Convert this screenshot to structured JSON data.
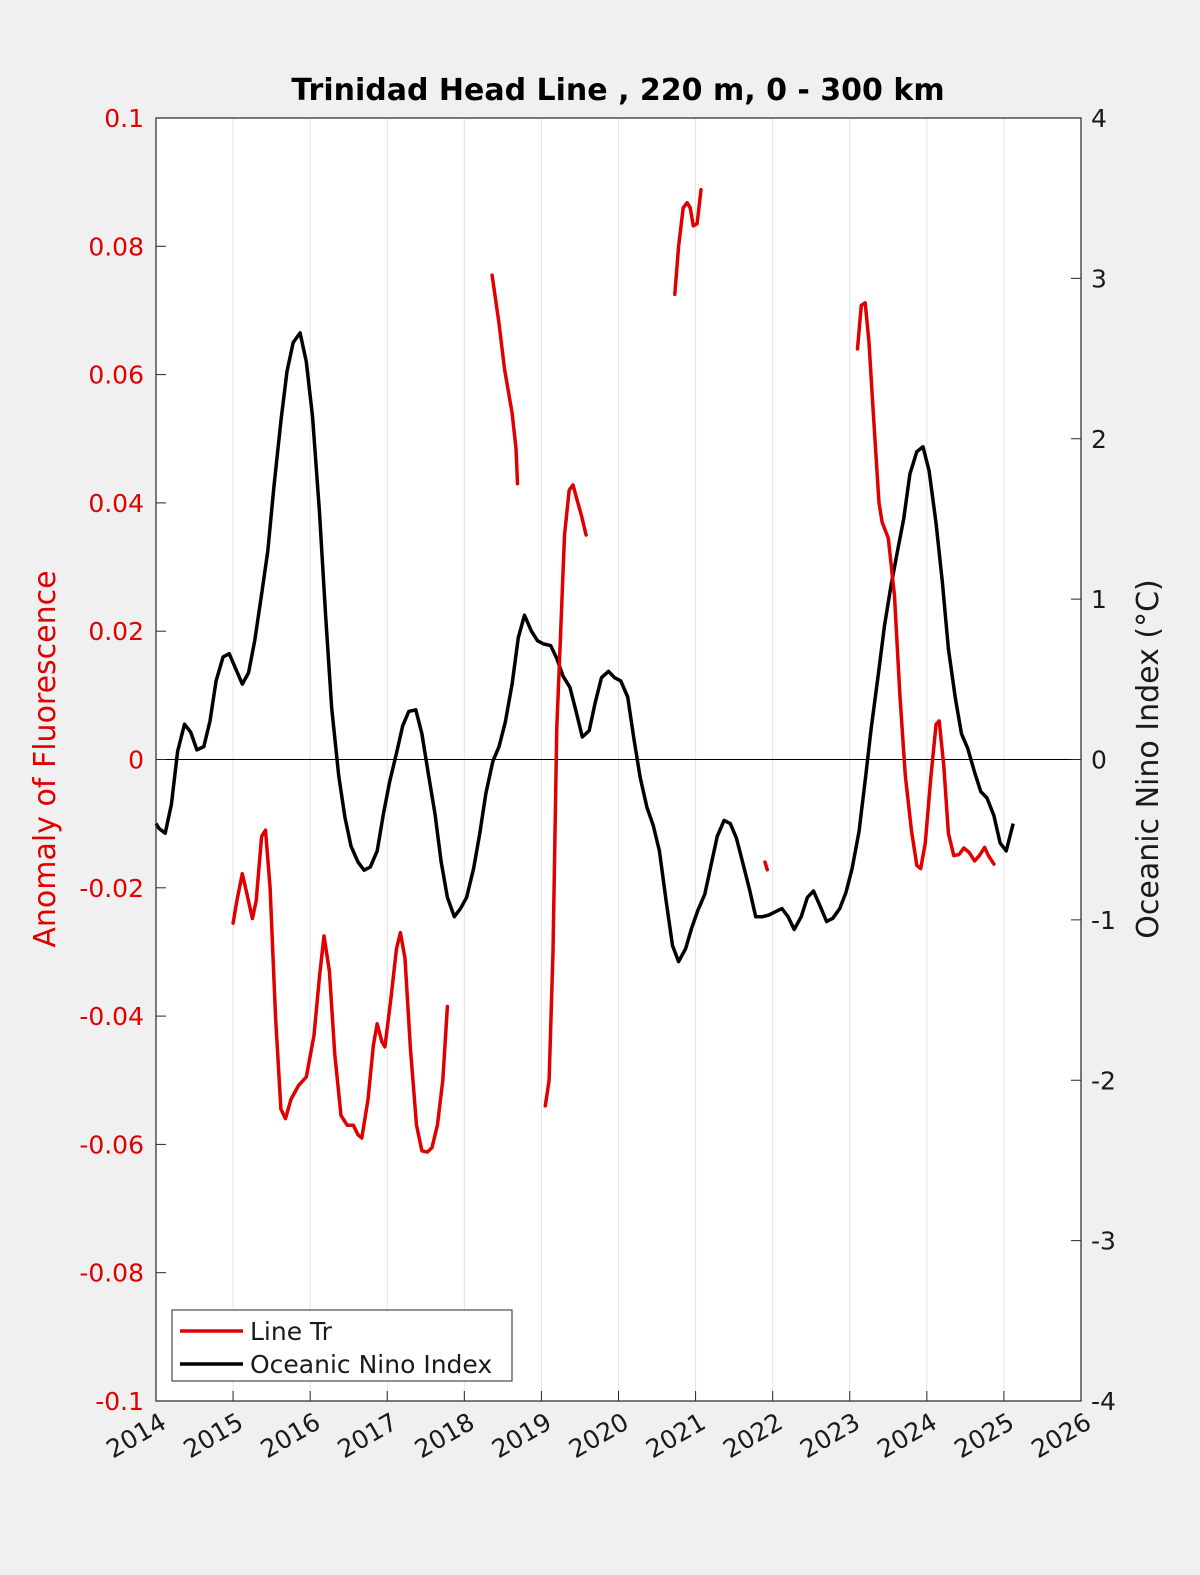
{
  "chart_data": {
    "type": "line",
    "title": "Trinidad Head Line , 220 m, 0 - 300 km",
    "xlabel": "",
    "ylabel": "Anomaly of Fluorescence",
    "y2label": "Oceanic Nino Index (°C)",
    "xlim": [
      2014,
      2026
    ],
    "ylim": [
      -0.1,
      0.1
    ],
    "y2lim": [
      -4,
      4
    ],
    "xticks": [
      "2014",
      "2015",
      "2016",
      "2017",
      "2018",
      "2019",
      "2020",
      "2021",
      "2022",
      "2023",
      "2024",
      "2025",
      "2026"
    ],
    "yticks": [
      "-0.1",
      "-0.08",
      "-0.06",
      "-0.04",
      "-0.02",
      "0",
      "0.02",
      "0.04",
      "0.06",
      "0.08",
      "0.1"
    ],
    "y2ticks": [
      "-4",
      "-3",
      "-2",
      "-1",
      "0",
      "1",
      "2",
      "3",
      "4"
    ],
    "grid": "x",
    "legend_position": "bottom-left",
    "colors": {
      "line_tr": "#e00000",
      "oni": "#000000",
      "left_axis": "#e00000"
    },
    "series": [
      {
        "name": "Line Tr",
        "axis": "left",
        "segments": [
          [
            [
              2015.0,
              -0.0255
            ],
            [
              2015.05,
              -0.022
            ],
            [
              2015.12,
              -0.0178
            ],
            [
              2015.18,
              -0.021
            ],
            [
              2015.25,
              -0.0248
            ],
            [
              2015.3,
              -0.022
            ],
            [
              2015.37,
              -0.012
            ],
            [
              2015.42,
              -0.011
            ],
            [
              2015.48,
              -0.02
            ],
            [
              2015.55,
              -0.04
            ],
            [
              2015.62,
              -0.0545
            ],
            [
              2015.68,
              -0.056
            ],
            [
              2015.75,
              -0.053
            ],
            [
              2015.85,
              -0.0508
            ],
            [
              2015.95,
              -0.0495
            ],
            [
              2016.05,
              -0.043
            ],
            [
              2016.12,
              -0.034
            ],
            [
              2016.18,
              -0.0275
            ],
            [
              2016.25,
              -0.033
            ],
            [
              2016.32,
              -0.046
            ],
            [
              2016.4,
              -0.0555
            ],
            [
              2016.48,
              -0.057
            ],
            [
              2016.56,
              -0.057
            ],
            [
              2016.62,
              -0.0585
            ],
            [
              2016.67,
              -0.059
            ],
            [
              2016.75,
              -0.053
            ],
            [
              2016.82,
              -0.0445
            ],
            [
              2016.87,
              -0.0412
            ],
            [
              2016.93,
              -0.044
            ],
            [
              2016.97,
              -0.0448
            ],
            [
              2017.05,
              -0.037
            ],
            [
              2017.12,
              -0.0295
            ],
            [
              2017.17,
              -0.027
            ],
            [
              2017.23,
              -0.031
            ],
            [
              2017.3,
              -0.045
            ],
            [
              2017.38,
              -0.057
            ],
            [
              2017.45,
              -0.061
            ],
            [
              2017.52,
              -0.0612
            ],
            [
              2017.58,
              -0.0605
            ],
            [
              2017.65,
              -0.057
            ],
            [
              2017.72,
              -0.05
            ],
            [
              2017.78,
              -0.0385
            ]
          ],
          [
            [
              2018.36,
              0.0755
            ],
            [
              2018.45,
              0.068
            ],
            [
              2018.52,
              0.061
            ],
            [
              2018.62,
              0.054
            ],
            [
              2018.67,
              0.0485
            ],
            [
              2018.69,
              0.043
            ]
          ],
          [
            [
              2019.05,
              -0.054
            ],
            [
              2019.1,
              -0.05
            ],
            [
              2019.15,
              -0.03
            ],
            [
              2019.2,
              0.005
            ],
            [
              2019.25,
              0.02
            ],
            [
              2019.3,
              0.035
            ],
            [
              2019.36,
              0.042
            ],
            [
              2019.41,
              0.0428
            ],
            [
              2019.45,
              0.041
            ],
            [
              2019.52,
              0.038
            ],
            [
              2019.58,
              0.035
            ]
          ],
          [
            [
              2020.73,
              0.0725
            ],
            [
              2020.78,
              0.08
            ],
            [
              2020.84,
              0.086
            ],
            [
              2020.89,
              0.0868
            ],
            [
              2020.93,
              0.086
            ],
            [
              2020.97,
              0.0832
            ],
            [
              2021.02,
              0.0835
            ],
            [
              2021.07,
              0.0888
            ]
          ],
          [
            [
              2021.9,
              -0.016
            ],
            [
              2021.93,
              -0.0172
            ]
          ],
          [
            [
              2023.1,
              0.064
            ],
            [
              2023.15,
              0.0708
            ],
            [
              2023.2,
              0.0712
            ],
            [
              2023.25,
              0.065
            ],
            [
              2023.3,
              0.055
            ],
            [
              2023.38,
              0.04
            ],
            [
              2023.42,
              0.037
            ],
            [
              2023.5,
              0.0345
            ],
            [
              2023.58,
              0.0255
            ],
            [
              2023.65,
              0.01
            ],
            [
              2023.72,
              -0.0025
            ],
            [
              2023.8,
              -0.011
            ],
            [
              2023.87,
              -0.0165
            ],
            [
              2023.92,
              -0.017
            ],
            [
              2023.98,
              -0.013
            ],
            [
              2024.05,
              -0.003
            ],
            [
              2024.12,
              0.0055
            ],
            [
              2024.16,
              0.006
            ],
            [
              2024.22,
              -0.001
            ],
            [
              2024.28,
              -0.0115
            ],
            [
              2024.35,
              -0.015
            ],
            [
              2024.42,
              -0.0148
            ],
            [
              2024.48,
              -0.0138
            ],
            [
              2024.55,
              -0.0145
            ],
            [
              2024.62,
              -0.0158
            ],
            [
              2024.68,
              -0.015
            ],
            [
              2024.75,
              -0.0137
            ],
            [
              2024.8,
              -0.015
            ],
            [
              2024.87,
              -0.0163
            ]
          ]
        ]
      },
      {
        "name": "Oceanic Nino Index",
        "axis": "right",
        "points": [
          [
            2014.0,
            -0.4
          ],
          [
            2014.04,
            -0.43
          ],
          [
            2014.12,
            -0.46
          ],
          [
            2014.2,
            -0.28
          ],
          [
            2014.28,
            0.05
          ],
          [
            2014.37,
            0.22
          ],
          [
            2014.45,
            0.17
          ],
          [
            2014.53,
            0.06
          ],
          [
            2014.62,
            0.08
          ],
          [
            2014.7,
            0.24
          ],
          [
            2014.78,
            0.49
          ],
          [
            2014.87,
            0.64
          ],
          [
            2014.95,
            0.66
          ],
          [
            2015.03,
            0.57
          ],
          [
            2015.12,
            0.47
          ],
          [
            2015.2,
            0.54
          ],
          [
            2015.28,
            0.74
          ],
          [
            2015.37,
            1.03
          ],
          [
            2015.45,
            1.3
          ],
          [
            2015.53,
            1.7
          ],
          [
            2015.62,
            2.11
          ],
          [
            2015.7,
            2.42
          ],
          [
            2015.78,
            2.6
          ],
          [
            2015.87,
            2.66
          ],
          [
            2015.95,
            2.48
          ],
          [
            2016.03,
            2.14
          ],
          [
            2016.12,
            1.55
          ],
          [
            2016.2,
            0.9
          ],
          [
            2016.28,
            0.32
          ],
          [
            2016.37,
            -0.1
          ],
          [
            2016.45,
            -0.36
          ],
          [
            2016.53,
            -0.54
          ],
          [
            2016.62,
            -0.64
          ],
          [
            2016.7,
            -0.69
          ],
          [
            2016.78,
            -0.67
          ],
          [
            2016.87,
            -0.57
          ],
          [
            2016.95,
            -0.34
          ],
          [
            2017.03,
            -0.14
          ],
          [
            2017.12,
            0.04
          ],
          [
            2017.2,
            0.21
          ],
          [
            2017.28,
            0.3
          ],
          [
            2017.37,
            0.31
          ],
          [
            2017.45,
            0.16
          ],
          [
            2017.53,
            -0.08
          ],
          [
            2017.62,
            -0.34
          ],
          [
            2017.7,
            -0.64
          ],
          [
            2017.78,
            -0.86
          ],
          [
            2017.87,
            -0.98
          ],
          [
            2017.95,
            -0.93
          ],
          [
            2018.03,
            -0.86
          ],
          [
            2018.12,
            -0.68
          ],
          [
            2018.2,
            -0.46
          ],
          [
            2018.28,
            -0.21
          ],
          [
            2018.37,
            -0.01
          ],
          [
            2018.45,
            0.08
          ],
          [
            2018.53,
            0.23
          ],
          [
            2018.62,
            0.47
          ],
          [
            2018.7,
            0.76
          ],
          [
            2018.78,
            0.9
          ],
          [
            2018.87,
            0.8
          ],
          [
            2018.95,
            0.74
          ],
          [
            2019.03,
            0.72
          ],
          [
            2019.12,
            0.71
          ],
          [
            2019.2,
            0.63
          ],
          [
            2019.28,
            0.52
          ],
          [
            2019.37,
            0.45
          ],
          [
            2019.45,
            0.3
          ],
          [
            2019.53,
            0.14
          ],
          [
            2019.62,
            0.18
          ],
          [
            2019.7,
            0.36
          ],
          [
            2019.78,
            0.51
          ],
          [
            2019.87,
            0.55
          ],
          [
            2019.95,
            0.51
          ],
          [
            2020.03,
            0.49
          ],
          [
            2020.12,
            0.39
          ],
          [
            2020.2,
            0.13
          ],
          [
            2020.28,
            -0.11
          ],
          [
            2020.37,
            -0.3
          ],
          [
            2020.45,
            -0.41
          ],
          [
            2020.53,
            -0.57
          ],
          [
            2020.62,
            -0.89
          ],
          [
            2020.7,
            -1.16
          ],
          [
            2020.78,
            -1.26
          ],
          [
            2020.87,
            -1.18
          ],
          [
            2020.95,
            -1.05
          ],
          [
            2021.03,
            -0.94
          ],
          [
            2021.12,
            -0.84
          ],
          [
            2021.2,
            -0.66
          ],
          [
            2021.28,
            -0.48
          ],
          [
            2021.37,
            -0.38
          ],
          [
            2021.45,
            -0.4
          ],
          [
            2021.53,
            -0.49
          ],
          [
            2021.62,
            -0.66
          ],
          [
            2021.7,
            -0.81
          ],
          [
            2021.78,
            -0.98
          ],
          [
            2021.87,
            -0.98
          ],
          [
            2021.95,
            -0.97
          ],
          [
            2022.03,
            -0.95
          ],
          [
            2022.12,
            -0.93
          ],
          [
            2022.2,
            -0.98
          ],
          [
            2022.28,
            -1.06
          ],
          [
            2022.37,
            -0.98
          ],
          [
            2022.45,
            -0.86
          ],
          [
            2022.53,
            -0.82
          ],
          [
            2022.62,
            -0.92
          ],
          [
            2022.7,
            -1.01
          ],
          [
            2022.78,
            -0.99
          ],
          [
            2022.87,
            -0.93
          ],
          [
            2022.95,
            -0.83
          ],
          [
            2023.03,
            -0.68
          ],
          [
            2023.12,
            -0.45
          ],
          [
            2023.2,
            -0.13
          ],
          [
            2023.28,
            0.2
          ],
          [
            2023.37,
            0.53
          ],
          [
            2023.45,
            0.83
          ],
          [
            2023.53,
            1.07
          ],
          [
            2023.62,
            1.3
          ],
          [
            2023.7,
            1.5
          ],
          [
            2023.78,
            1.78
          ],
          [
            2023.87,
            1.92
          ],
          [
            2023.95,
            1.95
          ],
          [
            2024.03,
            1.8
          ],
          [
            2024.12,
            1.47
          ],
          [
            2024.2,
            1.11
          ],
          [
            2024.28,
            0.69
          ],
          [
            2024.37,
            0.38
          ],
          [
            2024.45,
            0.16
          ],
          [
            2024.53,
            0.07
          ],
          [
            2024.62,
            -0.08
          ],
          [
            2024.7,
            -0.2
          ],
          [
            2024.78,
            -0.24
          ],
          [
            2024.87,
            -0.35
          ],
          [
            2024.95,
            -0.52
          ],
          [
            2025.03,
            -0.57
          ],
          [
            2025.12,
            -0.4
          ]
        ]
      }
    ]
  }
}
